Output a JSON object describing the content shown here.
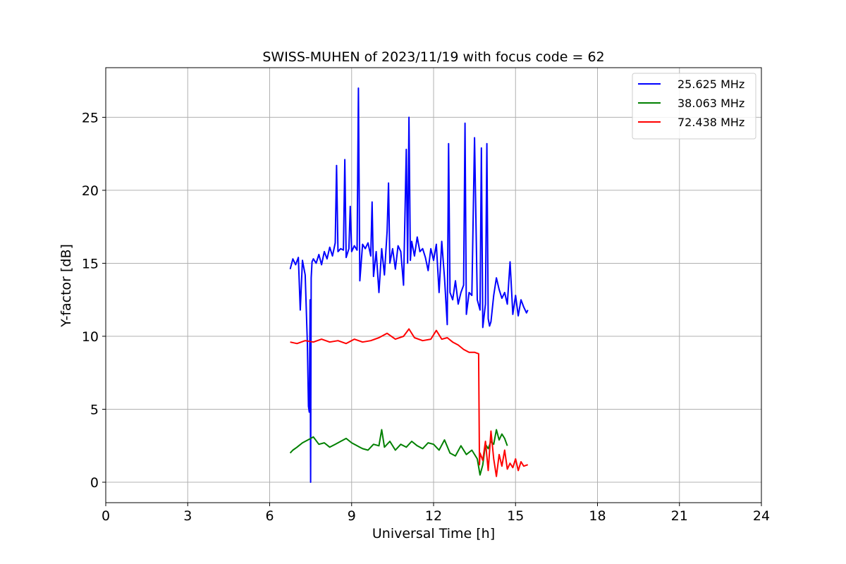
{
  "chart_data": {
    "type": "line",
    "title": "SWISS-MUHEN of 2023/11/19 with focus code = 62",
    "xlabel": "Universal Time [h]",
    "ylabel": "Y-factor [dB]",
    "xlim": [
      0,
      24
    ],
    "ylim": [
      -1.4,
      28.4
    ],
    "xticks": [
      0,
      3,
      6,
      9,
      12,
      15,
      18,
      21,
      24
    ],
    "yticks": [
      0,
      5,
      10,
      15,
      20,
      25
    ],
    "grid": true,
    "legend_position": "top-right",
    "series": [
      {
        "name": "25.625 MHz",
        "color": "#0000ff",
        "x": [
          6.75,
          6.85,
          6.95,
          7.05,
          7.12,
          7.2,
          7.3,
          7.38,
          7.42,
          7.45,
          7.48,
          7.5,
          7.52,
          7.55,
          7.6,
          7.7,
          7.8,
          7.9,
          8.0,
          8.1,
          8.2,
          8.3,
          8.4,
          8.45,
          8.5,
          8.6,
          8.7,
          8.75,
          8.8,
          8.9,
          8.95,
          9.0,
          9.1,
          9.2,
          9.25,
          9.3,
          9.4,
          9.5,
          9.6,
          9.7,
          9.75,
          9.8,
          9.9,
          10.0,
          10.1,
          10.2,
          10.3,
          10.35,
          10.4,
          10.5,
          10.6,
          10.7,
          10.8,
          10.9,
          11.0,
          11.05,
          11.1,
          11.15,
          11.2,
          11.3,
          11.4,
          11.5,
          11.6,
          11.7,
          11.8,
          11.9,
          12.0,
          12.1,
          12.2,
          12.3,
          12.4,
          12.5,
          12.55,
          12.6,
          12.7,
          12.8,
          12.9,
          13.0,
          13.1,
          13.15,
          13.2,
          13.3,
          13.4,
          13.5,
          13.6,
          13.7,
          13.75,
          13.8,
          13.9,
          13.95,
          14.0,
          14.05,
          14.1,
          14.2,
          14.3,
          14.4,
          14.5,
          14.6,
          14.7,
          14.8,
          14.9,
          15.0,
          15.1,
          15.2,
          15.3,
          15.4,
          15.45
        ],
        "y": [
          14.6,
          15.3,
          14.9,
          15.4,
          11.8,
          15.2,
          14.2,
          9.5,
          5.2,
          4.8,
          12.5,
          0.0,
          14.0,
          15.1,
          15.3,
          15.0,
          15.6,
          14.9,
          15.8,
          15.3,
          16.1,
          15.5,
          16.4,
          21.7,
          15.8,
          16.0,
          15.9,
          22.1,
          15.4,
          16.0,
          18.9,
          15.8,
          16.2,
          15.9,
          27.0,
          13.8,
          16.3,
          16.0,
          16.4,
          15.5,
          19.2,
          14.1,
          15.8,
          13.0,
          16.0,
          14.2,
          17.2,
          20.5,
          15.0,
          16.0,
          14.6,
          16.2,
          15.8,
          13.5,
          22.8,
          15.0,
          25.0,
          15.2,
          16.5,
          15.5,
          16.8,
          15.8,
          16.0,
          15.4,
          14.5,
          16.0,
          15.2,
          16.3,
          13.0,
          16.5,
          14.0,
          10.8,
          23.2,
          13.0,
          12.5,
          13.8,
          12.2,
          13.0,
          13.5,
          24.6,
          11.5,
          13.0,
          12.8,
          23.6,
          12.5,
          11.8,
          22.9,
          10.6,
          12.2,
          23.2,
          11.2,
          10.7,
          11.0,
          12.8,
          14.0,
          13.2,
          12.6,
          13.0,
          12.2,
          15.1,
          11.5,
          12.8,
          11.4,
          12.5,
          12.0,
          11.6,
          11.8
        ]
      },
      {
        "name": "38.063 MHz",
        "color": "#008000",
        "x": [
          6.75,
          6.85,
          7.0,
          7.2,
          7.4,
          7.6,
          7.8,
          8.0,
          8.2,
          8.4,
          8.6,
          8.8,
          9.0,
          9.2,
          9.4,
          9.6,
          9.8,
          10.0,
          10.1,
          10.2,
          10.4,
          10.6,
          10.8,
          11.0,
          11.2,
          11.4,
          11.6,
          11.8,
          12.0,
          12.2,
          12.4,
          12.6,
          12.8,
          13.0,
          13.2,
          13.4,
          13.6,
          13.7,
          13.8,
          13.9,
          14.0,
          14.1,
          14.2,
          14.3,
          14.4,
          14.5,
          14.6,
          14.7
        ],
        "y": [
          2.0,
          2.2,
          2.4,
          2.7,
          2.9,
          3.1,
          2.6,
          2.7,
          2.4,
          2.6,
          2.8,
          3.0,
          2.7,
          2.5,
          2.3,
          2.2,
          2.6,
          2.5,
          3.6,
          2.4,
          2.8,
          2.2,
          2.6,
          2.4,
          2.8,
          2.5,
          2.3,
          2.7,
          2.6,
          2.2,
          2.9,
          2.0,
          1.8,
          2.5,
          1.9,
          2.2,
          1.6,
          0.5,
          1.2,
          2.6,
          2.3,
          2.8,
          2.6,
          3.6,
          2.9,
          3.3,
          3.0,
          2.5
        ]
      },
      {
        "name": "72.438 MHz",
        "color": "#ff0000",
        "x": [
          6.75,
          7.0,
          7.3,
          7.6,
          7.9,
          8.2,
          8.5,
          8.8,
          9.1,
          9.4,
          9.7,
          10.0,
          10.3,
          10.6,
          10.9,
          11.1,
          11.3,
          11.6,
          11.9,
          12.1,
          12.3,
          12.5,
          12.7,
          12.9,
          13.1,
          13.3,
          13.5,
          13.65,
          13.68,
          13.7,
          13.8,
          13.9,
          14.0,
          14.1,
          14.2,
          14.3,
          14.4,
          14.5,
          14.6,
          14.7,
          14.8,
          14.9,
          15.0,
          15.1,
          15.2,
          15.3,
          15.45
        ],
        "y": [
          9.6,
          9.5,
          9.7,
          9.6,
          9.8,
          9.6,
          9.7,
          9.5,
          9.8,
          9.6,
          9.7,
          9.9,
          10.2,
          9.8,
          10.0,
          10.5,
          9.9,
          9.7,
          9.8,
          10.4,
          9.8,
          9.9,
          9.6,
          9.4,
          9.1,
          8.9,
          8.9,
          8.8,
          1.2,
          2.0,
          1.5,
          2.8,
          0.8,
          3.5,
          1.6,
          0.4,
          1.9,
          1.1,
          2.2,
          0.9,
          1.3,
          1.0,
          1.6,
          0.8,
          1.4,
          1.1,
          1.2
        ]
      }
    ]
  }
}
